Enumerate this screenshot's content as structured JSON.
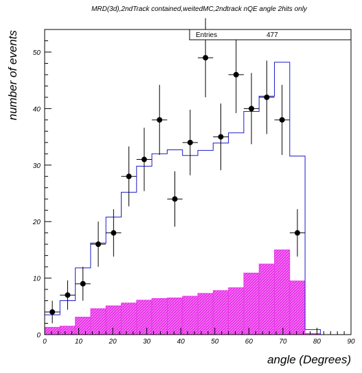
{
  "chart_data": {
    "type": "histogram",
    "title": "MRD(3d),2ndTrack contained,weitedMC,2ndtrack nQE angle 2hits only",
    "xlabel": "angle (Degrees)",
    "ylabel": "number of events",
    "xlim": [
      0,
      90
    ],
    "ylim": [
      0,
      54
    ],
    "x_ticks": [
      0,
      10,
      20,
      30,
      40,
      50,
      60,
      70,
      80,
      90
    ],
    "y_ticks": [
      0,
      10,
      20,
      30,
      40,
      50
    ],
    "stats": {
      "label": "Entries",
      "value": "477"
    },
    "bin_edges": [
      0,
      4.5,
      9,
      13.5,
      18,
      22.5,
      27,
      31.5,
      36,
      40.5,
      45,
      49.5,
      54,
      58.5,
      63,
      67.5,
      72,
      76.5,
      81,
      85.5,
      90
    ],
    "mc_total": [
      3.5,
      6.0,
      11.8,
      16.2,
      20.8,
      25.2,
      29.8,
      32.0,
      32.7,
      31.7,
      32.6,
      33.9,
      35.7,
      39.5,
      42.2,
      48.2,
      31.6,
      0.9,
      0.0,
      0.0
    ],
    "mc_nqe": [
      1.3,
      1.5,
      3.1,
      4.6,
      5.1,
      5.6,
      6.1,
      6.4,
      6.5,
      6.8,
      7.3,
      7.8,
      8.3,
      10.9,
      12.5,
      15.0,
      9.5,
      0.2,
      0.0,
      0.0
    ],
    "data_x": [
      2.25,
      6.75,
      11.25,
      15.75,
      20.25,
      24.75,
      29.25,
      33.75,
      38.25,
      42.75,
      47.25,
      51.75,
      56.25,
      60.75,
      65.25,
      69.75,
      74.25
    ],
    "data_y": [
      4,
      7,
      9,
      16,
      18,
      28,
      31,
      38,
      24,
      34,
      49,
      35,
      46,
      40,
      42,
      38,
      18
    ],
    "data_err": [
      2.0,
      2.6,
      3.0,
      4.0,
      4.2,
      5.3,
      5.6,
      6.2,
      4.9,
      5.8,
      7.0,
      5.9,
      6.8,
      6.3,
      6.5,
      6.2,
      4.2
    ],
    "colors": {
      "mc_total": "#1a1acc",
      "mc_nqe": "#e633e6",
      "data": "#000000"
    }
  }
}
